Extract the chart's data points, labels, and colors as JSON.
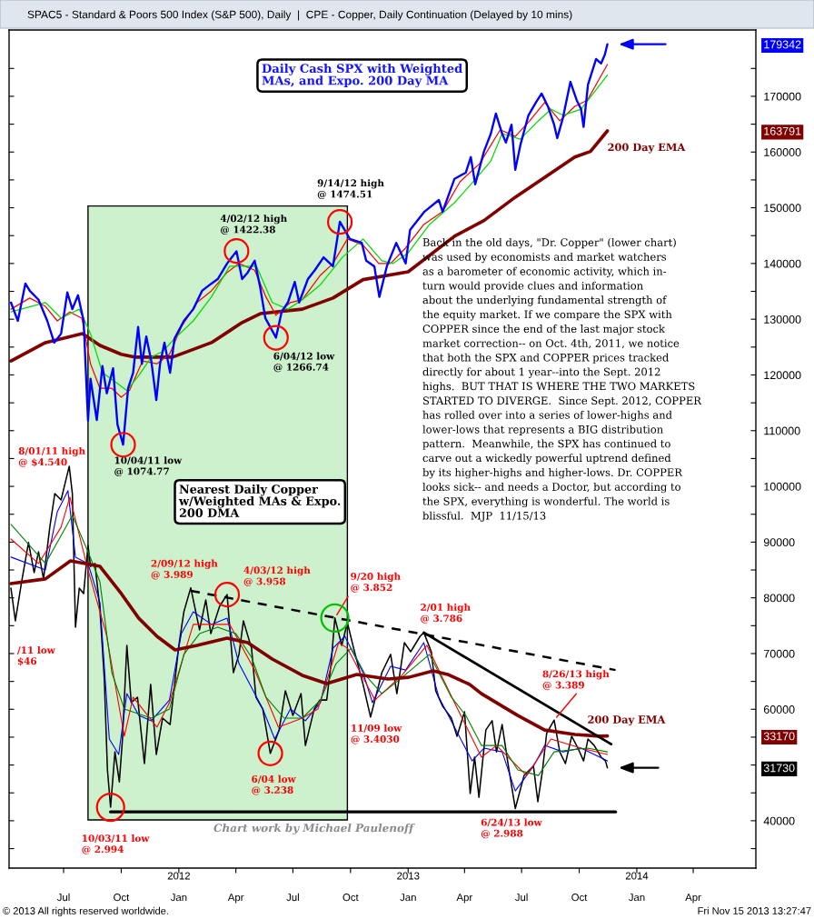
{
  "chart_data": [
    {
      "type": "line",
      "title": "SPAC5 - Standard & Poors 500 Index (S&P 500), Daily  |  CPE - Copper, Daily Continuation (Delayed by 10 mins)",
      "subtitle": "Daily Cash SPX with Weighted\nMAs, and Expo. 200 Day MA",
      "xlim": [
        "2011-04-05",
        "2014-07-10"
      ],
      "xticks": [
        {
          "value": "2011-07-01",
          "label": "Jul"
        },
        {
          "value": "2011-10-01",
          "label": "Oct"
        },
        {
          "value": "2012-01-01",
          "label": "Jan"
        },
        {
          "value": "2012-04-01",
          "label": "Apr"
        },
        {
          "value": "2012-07-01",
          "label": "Jul"
        },
        {
          "value": "2012-10-01",
          "label": "Oct"
        },
        {
          "value": "2013-01-01",
          "label": "Jan"
        },
        {
          "value": "2013-04-01",
          "label": "Apr"
        },
        {
          "value": "2013-07-01",
          "label": "Jul"
        },
        {
          "value": "2013-10-01",
          "label": "Oct"
        },
        {
          "value": "2014-01-01",
          "label": "Jan"
        },
        {
          "value": "2014-04-01",
          "label": "Apr"
        }
      ],
      "x2lim": [
        "2011-04-05",
        "2014-07-10"
      ],
      "x2ticks": [
        {
          "value": "2012-01-01",
          "label": "2012"
        },
        {
          "value": "2013-01-01",
          "label": "2013"
        },
        {
          "value": "2014-01-01",
          "label": "2014"
        }
      ],
      "ylim": [
        31500,
        181900
      ],
      "yticks": [
        {
          "value": 35000,
          "label": null
        },
        40000,
        {
          "value": 45000,
          "label": null
        },
        {
          "value": 50000,
          "label": null
        },
        {
          "value": 55000,
          "label": null
        },
        60000,
        {
          "value": 65000,
          "label": null
        },
        70000,
        {
          "value": 75000,
          "label": null
        },
        80000,
        {
          "value": 85000,
          "label": null
        },
        90000,
        {
          "value": 95000,
          "label": null
        },
        100000,
        {
          "value": 105000,
          "label": null
        },
        110000,
        {
          "value": 115000,
          "label": null
        },
        120000,
        {
          "value": 125000,
          "label": null
        },
        130000,
        {
          "value": 135000,
          "label": null
        },
        140000,
        {
          "value": 145000,
          "label": null
        },
        150000,
        {
          "value": 155000,
          "label": null
        },
        160000,
        163791,
        {
          "value": 165000,
          "label": null
        },
        170000,
        {
          "value": 175000,
          "label": null
        },
        179342
      ],
      "bands": [
        {
          "axis": "x",
          "from": "2011-08-09",
          "to": "2012-09-26",
          "color": "#cdf0cd"
        }
      ],
      "series": [
        {
          "color": "#0000ff",
          "x": [
            "2011-04-08",
            "2011-04-19",
            "2011-05-01",
            "2011-05-08",
            "2011-05-22",
            "2011-06-05",
            "2011-06-16",
            "2011-06-27",
            "2011-07-07",
            "2011-07-15",
            "2011-07-24",
            "2011-08-02",
            "2011-08-09",
            "2011-08-13",
            "2011-08-23",
            "2011-09-01",
            "2011-09-08",
            "2011-09-18",
            "2011-09-25",
            "2011-10-04",
            "2011-10-12",
            "2011-10-20",
            "2011-10-28",
            "2011-11-03",
            "2011-11-10",
            "2011-11-18",
            "2011-11-26",
            "2011-12-02",
            "2011-12-09",
            "2011-12-18",
            "2011-12-25",
            "2012-01-09",
            "2012-01-24",
            "2012-02-07",
            "2012-02-22",
            "2012-03-03",
            "2012-03-18",
            "2012-04-02",
            "2012-04-11",
            "2012-04-20",
            "2012-05-01",
            "2012-05-10",
            "2012-05-18",
            "2012-06-04",
            "2012-06-13",
            "2012-06-23",
            "2012-07-04",
            "2012-07-11",
            "2012-07-25",
            "2012-08-05",
            "2012-08-19",
            "2012-09-03",
            "2012-09-14",
            "2012-09-30",
            "2012-10-19",
            "2012-10-26",
            "2012-11-08",
            "2012-11-16",
            "2012-11-28",
            "2012-12-13",
            "2012-12-28",
            "2013-01-04",
            "2013-01-27",
            "2013-02-19",
            "2013-02-25",
            "2013-03-16",
            "2013-04-03",
            "2013-04-11",
            "2013-04-18",
            "2013-05-02",
            "2013-05-13",
            "2013-05-21",
            "2013-05-31",
            "2013-06-06",
            "2013-06-15",
            "2013-06-21",
            "2013-06-29",
            "2013-07-12",
            "2013-07-24",
            "2013-08-02",
            "2013-08-12",
            "2013-08-22",
            "2013-08-27",
            "2013-09-05",
            "2013-09-17",
            "2013-09-27",
            "2013-10-04",
            "2013-10-08",
            "2013-10-15",
            "2013-10-28",
            "2013-11-05",
            "2013-11-11",
            "2013-11-15"
          ],
          "values": [
            133000,
            129700,
            136400,
            135100,
            133500,
            129700,
            125800,
            127400,
            134800,
            131800,
            134300,
            129700,
            111800,
            119300,
            111900,
            121600,
            116700,
            121200,
            111100,
            107500,
            117600,
            120400,
            128600,
            122000,
            126900,
            122500,
            115500,
            122000,
            125800,
            120400,
            126500,
            129700,
            131800,
            135100,
            136400,
            137200,
            140000,
            142200,
            137200,
            138400,
            140500,
            135600,
            130200,
            126700,
            131300,
            133000,
            136700,
            133000,
            137200,
            138800,
            141100,
            139500,
            147500,
            144400,
            143700,
            140500,
            139500,
            134000,
            139500,
            143700,
            140000,
            146000,
            149300,
            151400,
            149300,
            155200,
            156300,
            159100,
            154200,
            160100,
            163300,
            166900,
            163300,
            161700,
            164900,
            156800,
            161200,
            166600,
            168900,
            170500,
            168200,
            164900,
            162500,
            166100,
            172600,
            169300,
            167700,
            164500,
            172100,
            176700,
            175900,
            177500,
            179342
          ]
        },
        {
          "color": "#ff0000",
          "x": [
            "2011-04-08",
            "2011-05-08",
            "2011-06-02",
            "2011-06-21",
            "2011-07-11",
            "2011-07-30",
            "2011-08-13",
            "2011-08-28",
            "2011-09-16",
            "2011-10-01",
            "2011-10-14",
            "2011-11-04",
            "2011-11-27",
            "2011-12-17",
            "2012-01-05",
            "2012-01-30",
            "2012-02-22",
            "2012-03-18",
            "2012-04-06",
            "2012-05-01",
            "2012-05-19",
            "2012-06-04",
            "2012-06-27",
            "2012-07-16",
            "2012-08-14",
            "2012-09-03",
            "2012-09-26",
            "2012-10-21",
            "2012-11-15",
            "2012-12-04",
            "2012-12-28",
            "2013-01-26",
            "2013-02-25",
            "2013-03-25",
            "2013-04-25",
            "2013-05-28",
            "2013-06-21",
            "2013-07-14",
            "2013-08-07",
            "2013-08-31",
            "2013-09-24",
            "2013-10-14",
            "2013-11-15"
          ],
          "values": [
            131800,
            133800,
            132300,
            129700,
            131300,
            130200,
            122000,
            117600,
            117600,
            116000,
            117200,
            122500,
            122000,
            123700,
            128600,
            133000,
            135100,
            138400,
            140000,
            138800,
            134000,
            130700,
            133000,
            133500,
            137900,
            140000,
            144400,
            143300,
            140000,
            140000,
            142800,
            147000,
            149300,
            154700,
            157900,
            164000,
            162800,
            165600,
            168900,
            165600,
            168200,
            169300,
            175700
          ]
        },
        {
          "color": "#00dd00",
          "x": [
            "2011-04-08",
            "2011-06-02",
            "2011-06-27",
            "2011-07-26",
            "2011-08-13",
            "2011-09-01",
            "2011-09-21",
            "2011-10-10",
            "2011-10-29",
            "2011-11-18",
            "2011-12-06",
            "2011-12-25",
            "2012-01-24",
            "2012-02-22",
            "2012-03-22",
            "2012-04-11",
            "2012-05-04",
            "2012-05-29",
            "2012-06-23",
            "2012-07-16",
            "2012-08-14",
            "2012-09-18",
            "2012-10-21",
            "2012-11-20",
            "2012-12-08",
            "2013-01-01",
            "2013-02-04",
            "2013-03-16",
            "2013-04-19",
            "2013-05-13",
            "2013-05-31",
            "2013-06-29",
            "2013-07-28",
            "2013-08-17",
            "2013-09-05",
            "2013-10-04",
            "2013-11-15"
          ],
          "values": [
            131300,
            133000,
            130200,
            131800,
            127400,
            120400,
            118800,
            117200,
            119900,
            123200,
            124200,
            126500,
            129700,
            134000,
            139500,
            139500,
            139500,
            133000,
            131800,
            133500,
            136200,
            141100,
            144400,
            140500,
            140000,
            141900,
            147000,
            150900,
            155200,
            158400,
            163300,
            162300,
            165600,
            167700,
            166600,
            167700,
            173800
          ]
        },
        {
          "name": "200 Day EMA",
          "color": "#800000",
          "x": [
            "2011-04-08",
            "2011-06-02",
            "2011-07-31",
            "2011-08-28",
            "2011-10-01",
            "2011-10-22",
            "2011-12-22",
            "2012-02-22",
            "2012-04-11",
            "2012-05-10",
            "2012-07-16",
            "2012-09-03",
            "2012-10-21",
            "2013-01-01",
            "2013-03-16",
            "2013-05-02",
            "2013-06-21",
            "2013-08-18",
            "2013-09-24",
            "2013-10-19",
            "2013-11-15"
          ],
          "values": [
            122500,
            125800,
            127400,
            125300,
            123700,
            123200,
            123200,
            125800,
            129400,
            131000,
            131800,
            133800,
            137100,
            138500,
            144900,
            147700,
            151900,
            156300,
            159100,
            160100,
            163791
          ]
        }
      ],
      "annotations": [
        "Back in the old days, \"Dr. Copper\" (lower chart)\nwas used by economists and market watchers\nas a barometer of economic activity, which in-\nturn would provide clues and information\nabout the underlying fundamental strength of\nthe equity market. If we compare the SPX with\nCOPPER since the end of the last major stock\nmarket correction-- on Oct. 4th, 2011, we notice\nthat both the SPX and COPPER prices tracked\ndirectly for about 1 year--into the Sept. 2012\nhighs.  BUT THAT IS WHERE THE TWO MARKETS\nSTARTED TO DIVERGE.  Since Sept. 2012, COPPER\nhas rolled over into a series of lower-highs and\nlower-lows that represents a BIG distribution\npattern.  Meanwhile, the SPX has continued to\ncarve out a wickedly powerful uptrend defined\nby its higher-highs and higher-lows. Dr. COPPER\nlooks sick-- and needs a Doctor, but according to\nthe SPX, everything is wonderful. The world is\nblissful.  MJP  11/15/13",
        "© 2013 All rights reserved worldwide.",
        "Fri Nov 15 2013 13:27:47",
        {
          "text": "10/04/11 low\n@ 1074.77",
          "x": "2011-10-04",
          "y": 107477
        },
        {
          "text": "4/02/12 high\n@ 1422.38",
          "x": "2012-04-02",
          "y": 142238
        },
        {
          "text": "6/04/12 low\n@ 1266.74",
          "x": "2012-06-04",
          "y": 126674
        },
        {
          "text": "9/14/12 high\n@ 1474.51",
          "x": "2012-09-14",
          "y": 147451
        }
      ]
    },
    {
      "type": "line",
      "title": "Nearest Daily Copper\nw/Weighted MAs & Expo.\n200 DMA",
      "xlim": [
        "2011-04-05",
        "2014-07-10"
      ],
      "ylim": [
        27180,
        65180
      ],
      "yticks": [
        31730,
        33170
      ],
      "tick_labels": "y",
      "series": [
        {
          "color": "#000000",
          "x": [
            "2011-04-08",
            "2011-04-15",
            "2011-04-25",
            "2011-05-06",
            "2011-05-15",
            "2011-05-22",
            "2011-05-30",
            "2011-06-09",
            "2011-06-17",
            "2011-06-27",
            "2011-07-04",
            "2011-07-10",
            "2011-07-15",
            "2011-07-20",
            "2011-07-26",
            "2011-08-02",
            "2011-08-09",
            "2011-08-13",
            "2011-08-20",
            "2011-08-28",
            "2011-09-04",
            "2011-09-09",
            "2011-09-14",
            "2011-09-21",
            "2011-09-28",
            "2011-10-03",
            "2011-10-10",
            "2011-10-17",
            "2011-10-27",
            "2011-11-07",
            "2011-11-17",
            "2011-11-26",
            "2011-12-06",
            "2011-12-18",
            "2012-01-01",
            "2012-01-09",
            "2012-01-20",
            "2012-02-03",
            "2012-02-13",
            "2012-02-21",
            "2012-03-06",
            "2012-03-18",
            "2012-03-28",
            "2012-04-06",
            "2012-04-13",
            "2012-04-26",
            "2012-05-03",
            "2012-05-14",
            "2012-05-26",
            "2012-06-09",
            "2012-06-19",
            "2012-07-01",
            "2012-07-14",
            "2012-07-21",
            "2012-08-04",
            "2012-08-13",
            "2012-08-24",
            "2012-08-31",
            "2012-09-06",
            "2012-09-17",
            "2012-09-26",
            "2012-10-06",
            "2012-10-21",
            "2012-11-02",
            "2012-11-20",
            "2012-12-04",
            "2012-12-14",
            "2012-12-26",
            "2013-01-05",
            "2013-01-20",
            "2013-01-26",
            "2013-02-07",
            "2013-02-14",
            "2013-02-25",
            "2013-03-11",
            "2013-03-20",
            "2013-04-01",
            "2013-04-10",
            "2013-04-17",
            "2013-04-24",
            "2013-05-05",
            "2013-05-15",
            "2013-05-22",
            "2013-05-31",
            "2013-06-10",
            "2013-06-21",
            "2013-07-05",
            "2013-07-20",
            "2013-07-27",
            "2013-08-03",
            "2013-08-10",
            "2013-08-22",
            "2013-08-31",
            "2013-09-09",
            "2013-09-19",
            "2013-09-29",
            "2013-10-08",
            "2013-10-15",
            "2013-10-25",
            "2013-11-05",
            "2013-11-12",
            "2013-11-15"
          ],
          "values": [
            39870,
            38390,
            40160,
            41940,
            40580,
            41520,
            40290,
            42640,
            44160,
            43870,
            44700,
            45400,
            44160,
            38100,
            39870,
            39630,
            41810,
            40860,
            40990,
            38930,
            35750,
            31630,
            29940,
            32450,
            31090,
            33030,
            37280,
            34680,
            34930,
            31920,
            35510,
            32330,
            33980,
            33690,
            37280,
            38800,
            39890,
            37980,
            39340,
            37810,
            39050,
            39580,
            36040,
            36870,
            38390,
            37150,
            34930,
            34390,
            32380,
            33440,
            35220,
            34100,
            35090,
            32740,
            34390,
            34800,
            34800,
            36450,
            38520,
            37280,
            38310,
            37150,
            35510,
            34030,
            36040,
            36870,
            35090,
            37400,
            36990,
            37690,
            37860,
            36990,
            35220,
            34520,
            33980,
            33160,
            34270,
            30560,
            32210,
            30390,
            33440,
            33860,
            32450,
            33690,
            31800,
            29880,
            31380,
            31800,
            30190,
            31510,
            33280,
            33890,
            32450,
            31920,
            33160,
            32620,
            32040,
            33030,
            32740,
            32210,
            32040,
            31730
          ]
        },
        {
          "color": "#0000ff",
          "x": [
            "2011-04-08",
            "2011-06-02",
            "2011-06-21",
            "2011-07-08",
            "2011-07-20",
            "2011-08-09",
            "2011-08-28",
            "2011-09-12",
            "2011-09-27",
            "2011-10-10",
            "2011-10-29",
            "2011-11-18",
            "2011-12-17",
            "2012-01-05",
            "2012-01-24",
            "2012-02-22",
            "2012-03-18",
            "2012-04-06",
            "2012-05-14",
            "2012-06-02",
            "2012-06-27",
            "2012-07-21",
            "2012-08-14",
            "2012-09-03",
            "2012-09-22",
            "2012-10-21",
            "2012-11-05",
            "2012-12-04",
            "2012-12-28",
            "2013-01-26",
            "2013-02-19",
            "2013-03-16",
            "2013-04-13",
            "2013-05-02",
            "2013-05-31",
            "2013-06-21",
            "2013-07-20",
            "2013-08-07",
            "2013-09-05",
            "2013-10-04",
            "2013-11-15"
          ],
          "values": [
            41280,
            40700,
            43340,
            44290,
            41280,
            40990,
            39220,
            33030,
            32330,
            35090,
            34100,
            33860,
            34800,
            37810,
            38800,
            38230,
            38510,
            36450,
            34390,
            33030,
            34390,
            33860,
            34680,
            37150,
            37690,
            36040,
            34680,
            36330,
            36160,
            37400,
            34930,
            33570,
            32040,
            32620,
            32450,
            30680,
            31800,
            32740,
            32450,
            32620,
            32040
          ]
        },
        {
          "color": "#ff0000",
          "x": [
            "2011-04-08",
            "2011-05-22",
            "2011-06-27",
            "2011-07-11",
            "2011-08-09",
            "2011-09-07",
            "2011-10-06",
            "2011-10-20",
            "2011-11-27",
            "2011-12-17",
            "2012-01-24",
            "2012-03-22",
            "2012-05-01",
            "2012-06-08",
            "2012-07-16",
            "2012-08-10",
            "2012-09-12",
            "2012-09-26",
            "2012-11-09",
            "2012-12-22",
            "2013-01-31",
            "2013-03-16",
            "2013-04-28",
            "2013-05-22",
            "2013-07-09",
            "2013-08-17",
            "2013-10-04",
            "2013-11-15"
          ],
          "values": [
            42100,
            40990,
            42640,
            44000,
            40700,
            37810,
            33160,
            34930,
            33570,
            34680,
            38230,
            38230,
            36160,
            33570,
            33980,
            34390,
            37400,
            37150,
            34800,
            35920,
            37280,
            34680,
            32210,
            32740,
            31380,
            33030,
            32620,
            32330
          ]
        },
        {
          "color": "#008000",
          "x": [
            "2011-04-08",
            "2011-06-02",
            "2011-07-15",
            "2011-08-09",
            "2011-08-28",
            "2011-09-16",
            "2011-10-06",
            "2011-11-18",
            "2011-12-17",
            "2012-01-09",
            "2012-02-03",
            "2012-03-03",
            "2012-04-01",
            "2012-04-26",
            "2012-05-19",
            "2012-06-17",
            "2012-07-16",
            "2012-08-14",
            "2012-09-08",
            "2012-10-02",
            "2012-10-25",
            "2012-11-20",
            "2012-12-19",
            "2013-02-04",
            "2013-03-11",
            "2013-04-03",
            "2013-04-28",
            "2013-05-31",
            "2013-06-25",
            "2013-07-28",
            "2013-08-22",
            "2013-10-14",
            "2013-11-15"
          ],
          "values": [
            42760,
            40990,
            43170,
            41520,
            40160,
            36040,
            34390,
            33980,
            34390,
            36870,
            37810,
            38100,
            37810,
            36740,
            34930,
            33980,
            33980,
            34800,
            36450,
            37150,
            35920,
            35090,
            35750,
            36870,
            34930,
            34100,
            32740,
            32740,
            31630,
            31380,
            32450,
            32620,
            32450
          ]
        },
        {
          "name": "200 Day EMA",
          "color": "#800000",
          "x": [
            "2011-04-08",
            "2011-06-02",
            "2011-07-12",
            "2011-08-28",
            "2011-10-01",
            "2011-10-29",
            "2011-11-27",
            "2011-12-26",
            "2012-01-30",
            "2012-03-18",
            "2012-04-20",
            "2012-05-29",
            "2012-07-16",
            "2012-08-24",
            "2012-10-11",
            "2012-11-30",
            "2013-01-02",
            "2013-02-10",
            "2013-03-05",
            "2013-04-09",
            "2013-04-28",
            "2013-06-25",
            "2013-08-07",
            "2013-09-24",
            "2013-11-02",
            "2013-11-15"
          ],
          "values": [
            40080,
            40290,
            41110,
            40860,
            39630,
            38510,
            37690,
            37070,
            37280,
            37610,
            37400,
            36660,
            35920,
            35550,
            35960,
            35750,
            35830,
            36120,
            35960,
            35510,
            35090,
            34100,
            33440,
            33240,
            33160,
            33170
          ]
        },
        {
          "type": "line",
          "color": "#000000",
          "line_style": "dashed",
          "x": [
            "2012-01-20",
            "2013-11-28"
          ],
          "values": [
            39750,
            36160
          ]
        },
        {
          "type": "line",
          "color": "#000000",
          "line_style": "solid",
          "x": [
            "2013-01-26",
            "2013-11-21"
          ],
          "values": [
            37860,
            32800
          ]
        },
        {
          "type": "line",
          "color": "#000000",
          "line_style": "solid",
          "x": [
            "2011-09-14",
            "2013-11-28"
          ],
          "values": [
            29730,
            29730
          ]
        }
      ],
      "annotations": [
        "Chart work by Michael Paulenoff",
        {
          "text": "8/01/11 high\n@ $4.540",
          "x": "2011-07-10",
          "y": 45400
        },
        {
          "text": "10/03/11 low\n@ 2.994",
          "x": "2011-09-14",
          "y": 29940
        },
        {
          "text": "2/09/12 high\n@ 3.989",
          "x": "2012-01-20",
          "y": 39890
        },
        {
          "text": "4/03/12 high\n@ 3.958",
          "x": "2012-03-18",
          "y": 39580
        },
        {
          "text": "9/20 high\n@ 3.852",
          "x": "2012-09-06",
          "y": 38520
        },
        {
          "text": "6/04 low\n@ 3.238",
          "x": "2012-05-26",
          "y": 32380
        },
        {
          "text": "11/09 low\n@ 3.4030",
          "x": "2012-11-02",
          "y": 34030
        },
        {
          "text": "2/01 high\n@ 3.786",
          "x": "2013-01-26",
          "y": 37860
        },
        {
          "text": "8/26/13 high\n@ 3.389",
          "x": "2013-08-22",
          "y": 33890
        },
        {
          "text": "6/24/13 low\n@ 2.988",
          "x": "2013-06-21",
          "y": 29880
        },
        {
          "text": "/11 low\n$46",
          "x": "2011-04-15",
          "y": 38390
        }
      ]
    }
  ]
}
